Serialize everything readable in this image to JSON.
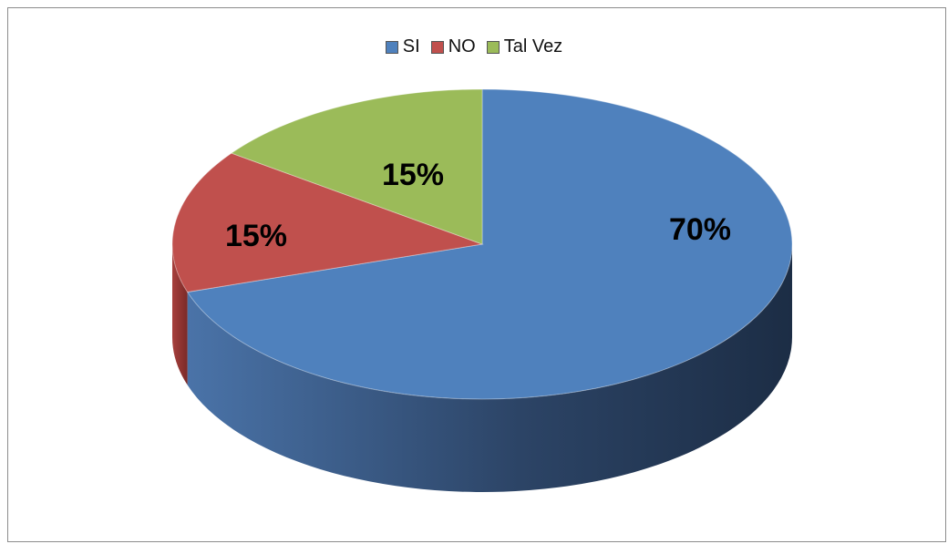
{
  "chart_data": {
    "type": "pie",
    "style": "3d",
    "categories": [
      "SI",
      "NO",
      "Tal Vez"
    ],
    "values": [
      70,
      15,
      15
    ],
    "labels": [
      "70%",
      "15%",
      "15%"
    ],
    "colors": [
      "#4F81BD",
      "#C0504D",
      "#9BBB59"
    ],
    "legend_position": "top"
  }
}
